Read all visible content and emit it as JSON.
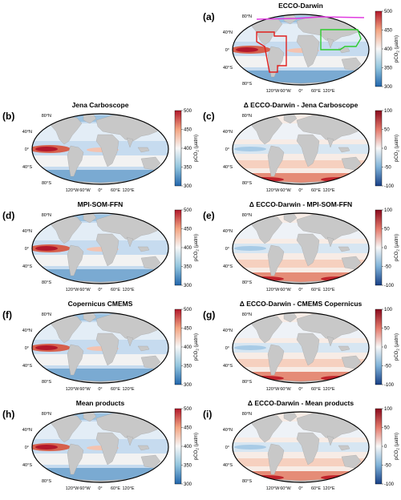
{
  "panels": [
    {
      "letter": "(a)",
      "title": "ECCO-Darwin",
      "kind": "abs",
      "ticks": [
        "500",
        "450",
        "400",
        "350",
        "300"
      ],
      "cblabel": "pCO",
      "cbsub": "2",
      "cbunit": " (μatm)",
      "regions": true
    },
    {
      "letter": "(b)",
      "title": "Jena Carboscope",
      "kind": "abs",
      "ticks": [
        "500",
        "450",
        "400",
        "350",
        "300"
      ],
      "cblabel": "pCO",
      "cbsub": "2",
      "cbunit": " (μatm)"
    },
    {
      "letter": "(c)",
      "title": "Δ ECCO-Darwin - Jena Carboscope",
      "kind": "diff",
      "ticks": [
        "100",
        "50",
        "0",
        "-50",
        "-100"
      ],
      "cblabel": "pCO",
      "cbsub": "2",
      "cbunit": " (μatm)"
    },
    {
      "letter": "(d)",
      "title": "MPI-SOM-FFN",
      "kind": "abs",
      "ticks": [
        "500",
        "450",
        "400",
        "350",
        "300"
      ],
      "cblabel": "pCO",
      "cbsub": "2",
      "cbunit": " (μatm)"
    },
    {
      "letter": "(e)",
      "title": "Δ ECCO-Darwin - MPI-SOM-FFN",
      "kind": "diff",
      "ticks": [
        "100",
        "50",
        "0",
        "-50",
        "-100"
      ],
      "cblabel": "pCO",
      "cbsub": "2",
      "cbunit": " (μatm)"
    },
    {
      "letter": "(f)",
      "title": "Copernicus CMEMS",
      "kind": "abs",
      "ticks": [
        "500",
        "450",
        "400",
        "350",
        "300"
      ],
      "cblabel": "pCO",
      "cbsub": "2",
      "cbunit": " (μatm)"
    },
    {
      "letter": "(g)",
      "title": "Δ ECCO-Darwin - CMEMS Copernicus",
      "kind": "diff",
      "ticks": [
        "100",
        "50",
        "0",
        "-50",
        "-100"
      ],
      "cblabel": "pCO",
      "cbsub": "2",
      "cbunit": " (μatm)"
    },
    {
      "letter": "(h)",
      "title": "Mean products",
      "kind": "abs",
      "ticks": [
        "500",
        "450",
        "400",
        "350",
        "300"
      ],
      "cblabel": "pCO",
      "cbsub": "2",
      "cbunit": " (μatm)"
    },
    {
      "letter": "(i)",
      "title": "Δ ECCO-Darwin - Mean products",
      "kind": "diff",
      "ticks": [
        "100",
        "50",
        "0",
        "-50",
        "-100"
      ],
      "cblabel": "pCO",
      "cbsub": "2",
      "cbunit": " (μatm)"
    }
  ],
  "lat_labels": [
    "80°N",
    "40°N",
    "0°",
    "40°S",
    "80°S"
  ],
  "lon_labels": [
    "120°W",
    "60°W",
    "0°",
    "60°E",
    "120°E"
  ],
  "colors": {
    "land": "#c8c8c8",
    "ocean_base": "#dfe8f3",
    "high": "#c0232b",
    "low": "#2166ac",
    "region_pink": "#e03ce0",
    "region_red": "#e0201e",
    "region_green": "#2ecc2e"
  }
}
